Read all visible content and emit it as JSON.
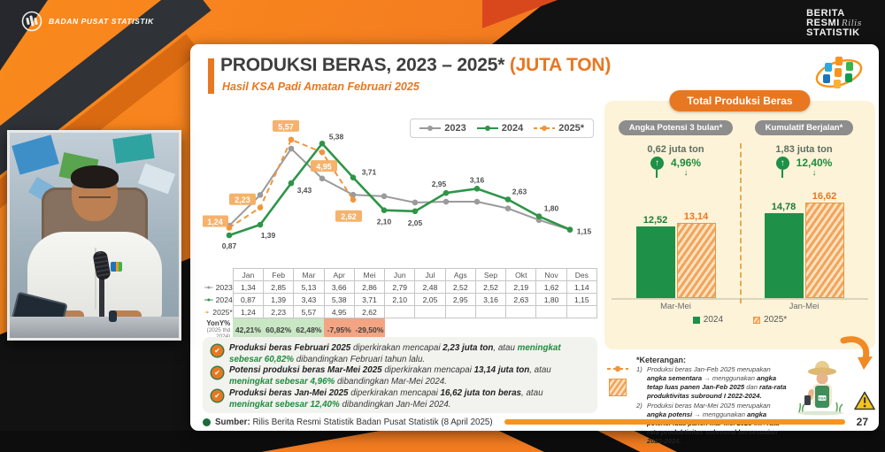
{
  "header": {
    "brand": "BADAN PUSAT STATISTIK",
    "brs_lines": [
      "BERITA",
      "RESMI",
      "STATISTIK"
    ],
    "brs_script": "Rilis"
  },
  "slide": {
    "title": "PRODUKSI BERAS, 2023 – 2025*",
    "title_accent": " (JUTA TON)",
    "subtitle": "Hasil KSA Padi Amatan Februari 2025",
    "page": "27",
    "source_label": "Sumber:",
    "source_text": " Rilis Berita Resmi Statistik Badan Pusat Statistik (8 April 2025)"
  },
  "chart_data": [
    {
      "type": "line",
      "title": "Produksi Beras 2023–2025* (Juta Ton)",
      "categories": [
        "Jan",
        "Feb",
        "Mar",
        "Apr",
        "Mei",
        "Jun",
        "Jul",
        "Ags",
        "Sep",
        "Okt",
        "Nov",
        "Des"
      ],
      "series": [
        {
          "name": "2023",
          "color": "#9B9B9B",
          "dashed": false,
          "values": [
            1.34,
            2.85,
            5.13,
            3.66,
            2.86,
            2.79,
            2.48,
            2.52,
            2.52,
            2.19,
            1.62,
            1.14
          ]
        },
        {
          "name": "2024",
          "color": "#2E9548",
          "dashed": false,
          "values": [
            0.87,
            1.39,
            3.43,
            5.38,
            3.71,
            2.1,
            2.05,
            2.95,
            3.16,
            2.63,
            1.8,
            1.15
          ]
        },
        {
          "name": "2025*",
          "color": "#F0953C",
          "dashed": true,
          "values": [
            1.24,
            2.23,
            5.57,
            4.95,
            2.62,
            null,
            null,
            null,
            null,
            null,
            null,
            null
          ]
        }
      ],
      "ylim": [
        0,
        6
      ],
      "grid": false,
      "legend_position": "top-right"
    },
    {
      "type": "bar",
      "categories": [
        "Mar-Mei",
        "Jan-Mei"
      ],
      "series": [
        {
          "name": "2024",
          "color": "#1E9048",
          "label_color": "#1F7A38",
          "hatched": false,
          "values": [
            12.52,
            14.78
          ]
        },
        {
          "name": "2025*",
          "color": "#F2A45C",
          "label_color": "#E87722",
          "hatched": true,
          "values": [
            13.14,
            16.62
          ]
        }
      ],
      "ylim": [
        0,
        18
      ],
      "legend_position": "bottom"
    }
  ],
  "table": {
    "yoy": {
      "label": "YonY%",
      "sublabel": "(2025 thd 2024)",
      "values": [
        {
          "text": "42,21%",
          "positive": true
        },
        {
          "text": "60,82%",
          "positive": true
        },
        {
          "text": "62,48%",
          "positive": true
        },
        {
          "text": "-7,95%",
          "positive": false
        },
        {
          "text": "-29,50%",
          "positive": false
        }
      ]
    }
  },
  "bullets": [
    [
      {
        "t": "Produksi beras Februari 2025",
        "s": "b"
      },
      {
        "t": " diperkirakan mencapai ",
        "s": "n"
      },
      {
        "t": "2,23 juta ton",
        "s": "b"
      },
      {
        "t": ", atau ",
        "s": "n"
      },
      {
        "t": "meningkat sebesar 60,82%",
        "s": "g"
      },
      {
        "t": " dibandingkan Februari tahun lalu.",
        "s": "n"
      }
    ],
    [
      {
        "t": "Potensi produksi beras Mar-Mei 2025",
        "s": "b"
      },
      {
        "t": " diperkirakan mencapai ",
        "s": "n"
      },
      {
        "t": "13,14 juta ton",
        "s": "b"
      },
      {
        "t": ", atau ",
        "s": "n"
      },
      {
        "t": "meningkat sebesar 4,96%",
        "s": "g"
      },
      {
        "t": " dibandingkan Mar-Mei 2024.",
        "s": "n"
      }
    ],
    [
      {
        "t": "Produksi beras Jan-Mei 2025",
        "s": "b"
      },
      {
        "t": " diperkirakan mencapai ",
        "s": "n"
      },
      {
        "t": "16,62 juta ton beras",
        "s": "b"
      },
      {
        "t": ", atau ",
        "s": "n"
      },
      {
        "t": "meningkat sebesar 12,40%",
        "s": "g"
      },
      {
        "t": " dibandingkan Jan-Mei 2024.",
        "s": "n"
      }
    ]
  ],
  "panel": {
    "title": "Total Produksi Beras",
    "sections": [
      {
        "header": "Angka Potensi 3 bulan*",
        "amount": "0,62 juta ton",
        "pct": "4,96%",
        "up_arrow": "↑",
        "down_arrow": "↓",
        "cat": "Mar-Mei"
      },
      {
        "header": "Kumulatif Berjalan*",
        "amount": "1,83 juta ton",
        "pct": "12,40%",
        "up_arrow": "↑",
        "down_arrow": "↓",
        "cat": "Jan-Mei"
      }
    ]
  },
  "notes": {
    "title": "*Keterangan:",
    "badge": "KSA",
    "items": [
      {
        "num": "1)",
        "segments": [
          {
            "t": "Produksi beras Jan-Feb 2025 merupakan ",
            "s": "i"
          },
          {
            "t": "angka sementara",
            "s": "bi"
          },
          {
            "t": " → menggunakan ",
            "s": "i"
          },
          {
            "t": "angka tetap luas panen Jan-Feb 2025",
            "s": "bi"
          },
          {
            "t": " dan ",
            "s": "i"
          },
          {
            "t": "rata-rata produktivitas subround I 2022-2024.",
            "s": "bi"
          }
        ]
      },
      {
        "num": "2)",
        "segments": [
          {
            "t": "Produksi beras Mar-Mei 2025 merupakan ",
            "s": "i"
          },
          {
            "t": "angka potensi",
            "s": "bi"
          },
          {
            "t": " → menggunakan ",
            "s": "i"
          },
          {
            "t": "angka potensi luas panen Mar-Mei 2025",
            "s": "bi"
          },
          {
            "t": " dan ",
            "s": "i"
          },
          {
            "t": "rata-rata produktivitas subround bersesuaian 2022-2024.",
            "s": "bi"
          }
        ]
      }
    ]
  },
  "colors": {
    "accent_orange": "#E87722",
    "band_orange": "#F47C20",
    "green": "#1E9048",
    "gray_series": "#9B9B9B",
    "label_box_orange": "#F5AE63",
    "panel_bg": "#FCF3D8",
    "yoy_pos_bg": "#C9E7C4",
    "yoy_neg_bg": "#F3A583"
  }
}
